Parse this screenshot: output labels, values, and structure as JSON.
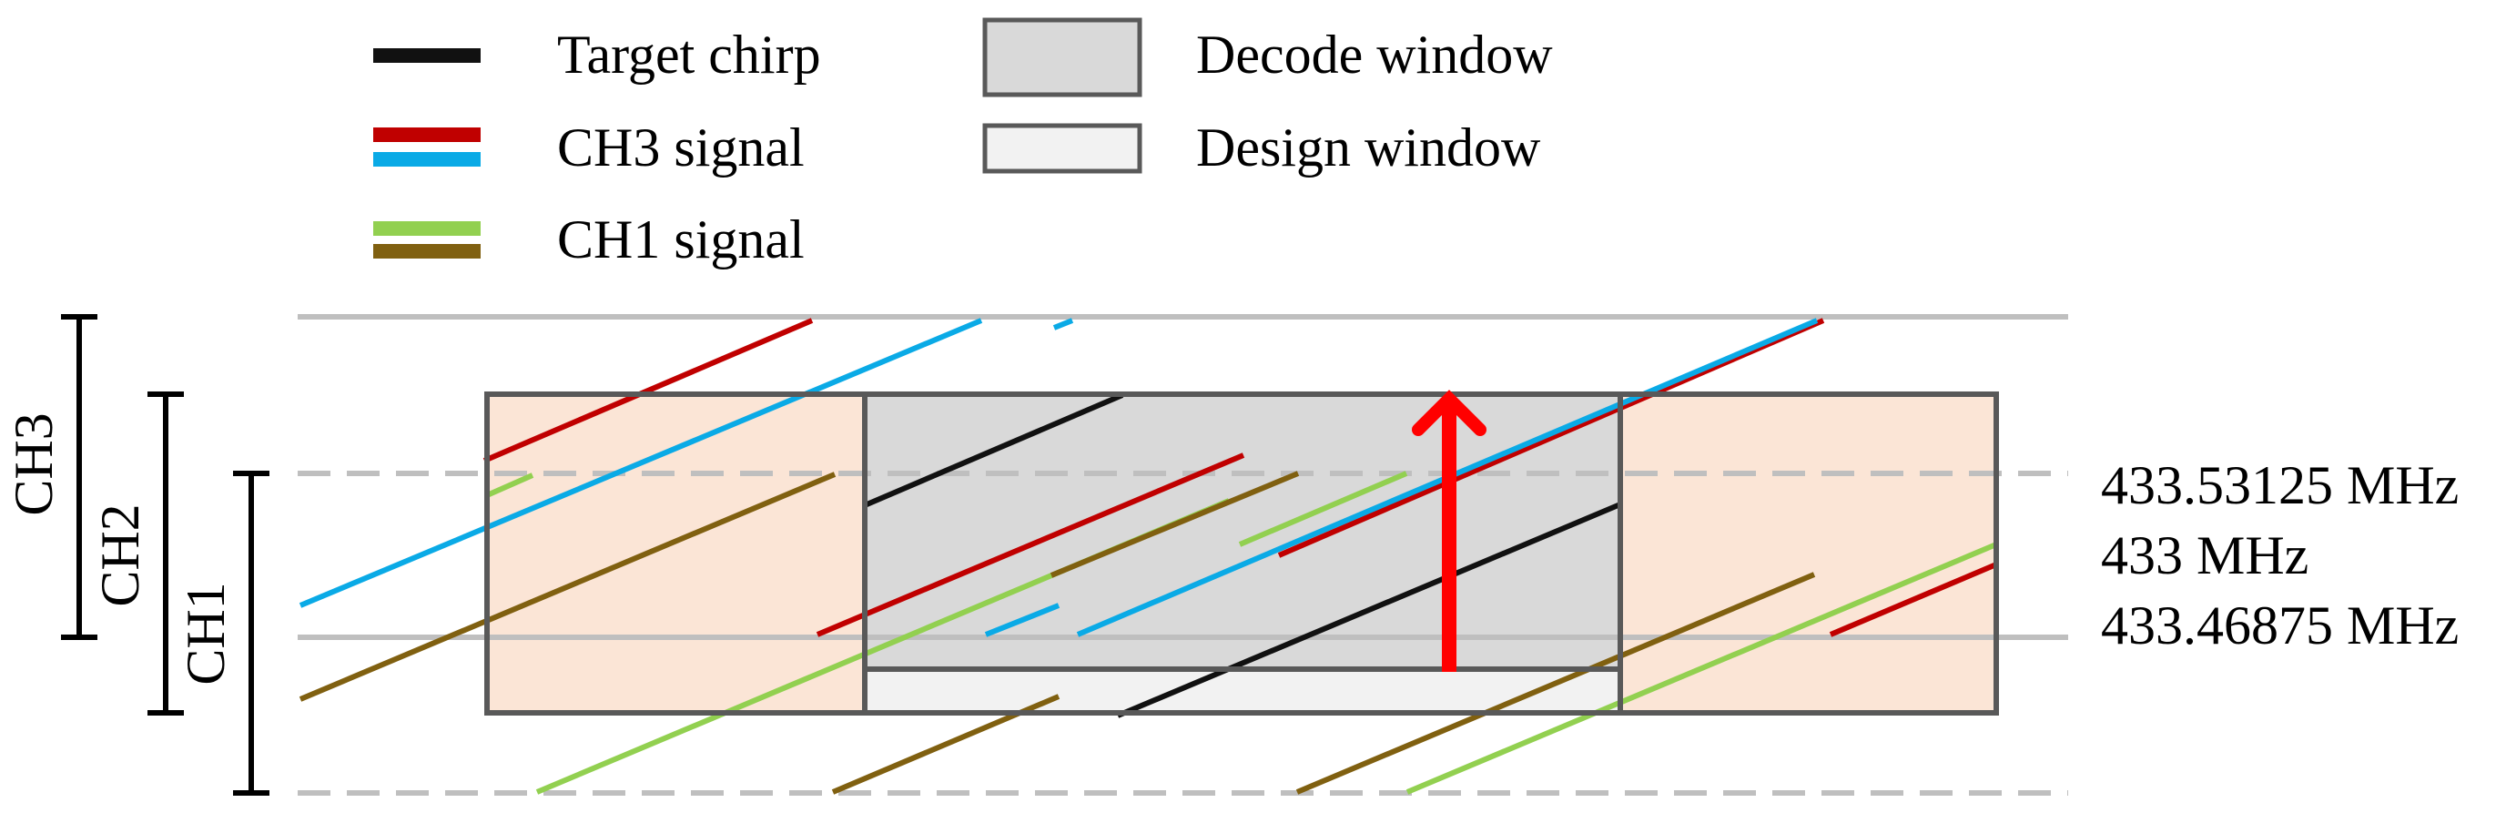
{
  "legend": {
    "target_chirp": "Target chirp",
    "ch3_signal": "CH3 signal",
    "ch1_signal": "CH1 signal",
    "decode_window": "Decode window",
    "design_window": "Design window"
  },
  "channels": {
    "ch3": "CH3",
    "ch2": "CH2",
    "ch1": "CH1"
  },
  "frequencies": {
    "upper": "433.53125 MHz",
    "center": "433 MHz",
    "lower": "433.46875 MHz"
  },
  "colors": {
    "target_chirp": "#111111",
    "ch3_red": "#c00000",
    "ch3_blue": "#0aaae6",
    "ch1_green": "#92d050",
    "ch1_brown": "#806010",
    "decode_window": "#d9d9d9",
    "design_window": "#f2f2f2",
    "side_window": "#fbe5d6",
    "window_border": "#595959",
    "grid_line": "#bfbfbf",
    "arrow": "#ff0000"
  }
}
